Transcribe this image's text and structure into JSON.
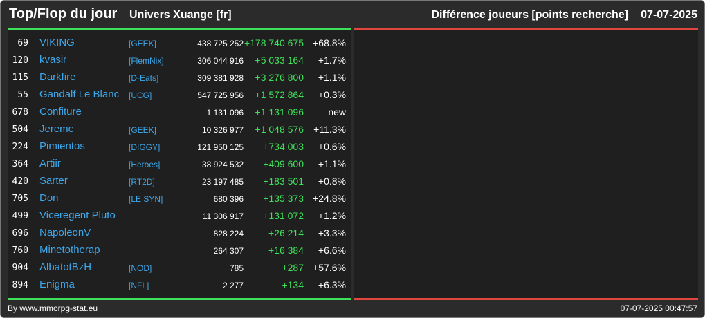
{
  "header": {
    "title": "Top/Flop du jour",
    "server": "Univers Xuange [fr]",
    "diff_label": "Différence joueurs [points recherche]",
    "date": "07-07-2025"
  },
  "colors": {
    "background": "#2b2b2b",
    "panel": "#1f1f1f",
    "top_accent": "#3ee05a",
    "flop_accent": "#e2473f",
    "name": "#3ea7ea",
    "gain": "#3ee05a"
  },
  "top_rows": [
    {
      "rank": "69",
      "name": "VIKING",
      "alliance": "[GEEK]",
      "points": "438 725 252",
      "diff": "+178 740 675",
      "pct": "+68.8%"
    },
    {
      "rank": "120",
      "name": "kvasir",
      "alliance": "[FlemNix]",
      "points": "306 044 916",
      "diff": "+5 033 164",
      "pct": "+1.7%"
    },
    {
      "rank": "115",
      "name": "Darkfire",
      "alliance": "[D-Eats]",
      "points": "309 381 928",
      "diff": "+3 276 800",
      "pct": "+1.1%"
    },
    {
      "rank": "55",
      "name": "Gandalf Le Blanc",
      "alliance": "[UCG]",
      "points": "547 725 956",
      "diff": "+1 572 864",
      "pct": "+0.3%"
    },
    {
      "rank": "678",
      "name": "Confiture",
      "alliance": "",
      "points": "1 131 096",
      "diff": "+1 131 096",
      "pct": "new"
    },
    {
      "rank": "504",
      "name": "Jereme",
      "alliance": "[GEEK]",
      "points": "10 326 977",
      "diff": "+1 048 576",
      "pct": "+11.3%"
    },
    {
      "rank": "224",
      "name": "Pimientos",
      "alliance": "[DIGGY]",
      "points": "121 950 125",
      "diff": "+734 003",
      "pct": "+0.6%"
    },
    {
      "rank": "364",
      "name": "Artiir",
      "alliance": "[Heroes]",
      "points": "38 924 532",
      "diff": "+409 600",
      "pct": "+1.1%"
    },
    {
      "rank": "420",
      "name": "Sarter",
      "alliance": "[RT2D]",
      "points": "23 197 485",
      "diff": "+183 501",
      "pct": "+0.8%"
    },
    {
      "rank": "705",
      "name": "Don",
      "alliance": "[LE SYN]",
      "points": "680 396",
      "diff": "+135 373",
      "pct": "+24.8%"
    },
    {
      "rank": "499",
      "name": "Viceregent Pluto",
      "alliance": "",
      "points": "11 306 917",
      "diff": "+131 072",
      "pct": "+1.2%"
    },
    {
      "rank": "696",
      "name": "NapoleonV",
      "alliance": "",
      "points": "828 224",
      "diff": "+26 214",
      "pct": "+3.3%"
    },
    {
      "rank": "760",
      "name": "Minetotherap",
      "alliance": "",
      "points": "264 307",
      "diff": "+16 384",
      "pct": "+6.6%"
    },
    {
      "rank": "904",
      "name": "AlbatotBzH",
      "alliance": "[NOD]",
      "points": "785",
      "diff": "+287",
      "pct": "+57.6%"
    },
    {
      "rank": "894",
      "name": "Enigma",
      "alliance": "[NFL]",
      "points": "2 277",
      "diff": "+134",
      "pct": "+6.3%"
    }
  ],
  "footer": {
    "source": "By www.mmorpg-stat.eu",
    "timestamp": "07-07-2025 00:47:57"
  }
}
